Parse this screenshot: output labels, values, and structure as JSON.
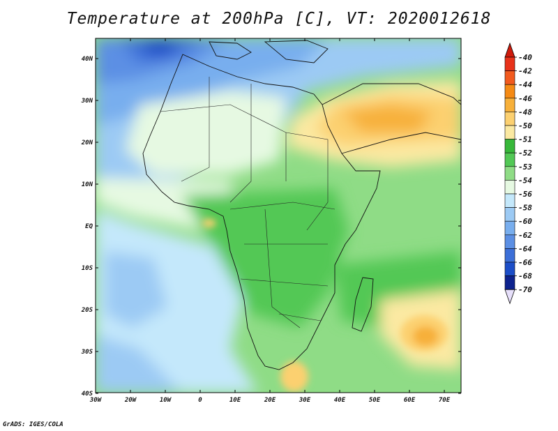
{
  "title": "Temperature at 200hPa [C], VT: 2020012618",
  "credit": "GrADS: IGES/COLA",
  "map": {
    "lon_labels": [
      "30W",
      "20W",
      "10W",
      "0",
      "10E",
      "20E",
      "30E",
      "40E",
      "50E",
      "60E",
      "70E"
    ],
    "lat_labels": [
      "40N",
      "30N",
      "20N",
      "10N",
      "EQ",
      "10S",
      "20S",
      "30S",
      "40S"
    ]
  },
  "colorbar": {
    "labels": [
      "-40",
      "-42",
      "-44",
      "-46",
      "-48",
      "-50",
      "-51",
      "-52",
      "-53",
      "-54",
      "-56",
      "-58",
      "-60",
      "-62",
      "-64",
      "-66",
      "-68",
      "-70"
    ],
    "colors": [
      "#e8321a",
      "#f25a1e",
      "#f58a14",
      "#f7b03a",
      "#fcd070",
      "#fbe9a2",
      "#37b83a",
      "#52c855",
      "#8fdc86",
      "#e6f9e2",
      "#c4e8fb",
      "#9ccaf4",
      "#78aeee",
      "#5b8fe4",
      "#3c6fd8",
      "#1c4ec8",
      "#0d228e"
    ],
    "top_tip_color": "#cf1b0c",
    "bottom_tip_color": "#e7e0fb"
  }
}
